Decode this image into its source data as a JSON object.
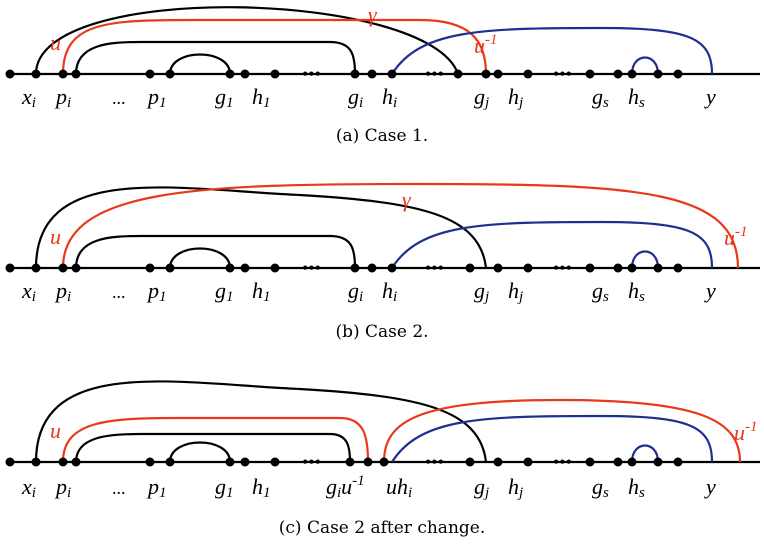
{
  "colors": {
    "black": "#000000",
    "red": "#e8391a",
    "blue": "#1f2f8f"
  },
  "labels": {
    "x": "x",
    "x_sub": "i",
    "p": "p",
    "pi_sub": "i",
    "p1_sub": "1",
    "g": "g",
    "g1_sub": "1",
    "gi_sub": "i",
    "gj_sub": "j",
    "gs_sub": "s",
    "h": "h",
    "h1_sub": "1",
    "hi_sub": "i",
    "hj_sub": "j",
    "hs_sub": "s",
    "y": "y",
    "u": "u",
    "u_inv": "u",
    "inv_sup": "-1",
    "inv_sup_c": "-1",
    "gamma": "γ",
    "ellipsis": "...",
    "dots": "•••"
  },
  "captions": {
    "a": "(a) Case 1.",
    "b": "(b) Case 2.",
    "c": "(c) Case 2 after change."
  }
}
